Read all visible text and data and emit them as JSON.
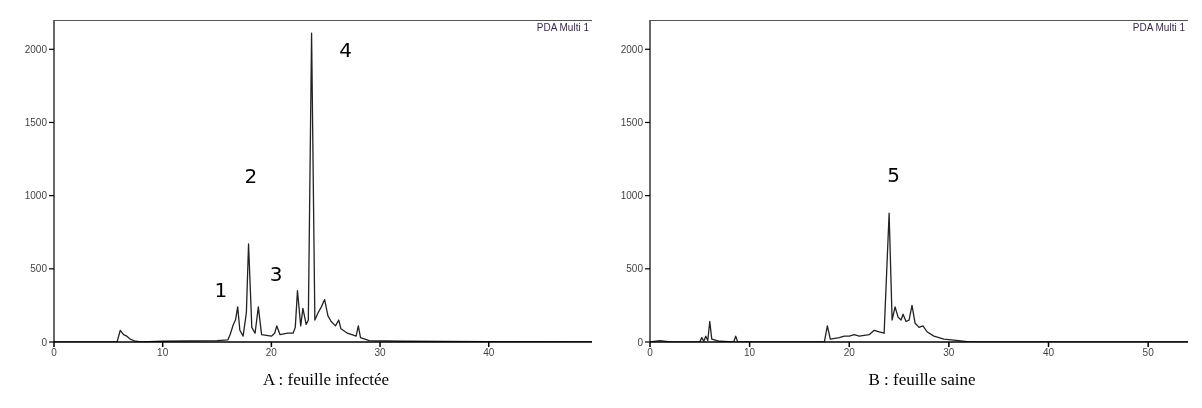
{
  "chart_data": [
    {
      "type": "line",
      "title": "A : feuille infectée",
      "annotations": [
        "PDA Multi 1",
        "1",
        "2",
        "3",
        "4"
      ],
      "xlim": [
        0,
        49.5
      ],
      "ylim": [
        0,
        2200
      ],
      "xticks": [
        0,
        10,
        20,
        30,
        40
      ],
      "yticks": [
        0,
        500,
        1000,
        1500,
        2000
      ],
      "grid": false,
      "legend": false,
      "marker": "none",
      "series": [
        {
          "color": "#222222",
          "x": [
            0,
            5.8,
            6.1,
            6.4,
            6.7,
            7,
            7.5,
            8,
            10,
            15,
            16,
            16.2,
            16.5,
            16.7,
            16.9,
            17.1,
            17.4,
            17.7,
            17.9,
            18.2,
            18.5,
            18.8,
            19.1,
            20,
            20.3,
            20.5,
            20.8,
            21.5,
            22,
            22.2,
            22.4,
            22.7,
            22.9,
            23.2,
            23.4,
            23.7,
            24,
            24.3,
            24.6,
            24.9,
            25.2,
            25.5,
            25.9,
            26.2,
            26.4,
            27,
            27.8,
            28,
            28.2,
            29,
            32,
            40,
            49.5
          ],
          "values": [
            0,
            0,
            80,
            50,
            40,
            20,
            5,
            0,
            5,
            10,
            15,
            50,
            120,
            150,
            240,
            80,
            40,
            200,
            670,
            100,
            60,
            240,
            50,
            40,
            60,
            110,
            50,
            60,
            60,
            100,
            350,
            110,
            230,
            120,
            150,
            2110,
            150,
            200,
            240,
            290,
            180,
            140,
            110,
            150,
            90,
            60,
            40,
            110,
            30,
            10,
            5,
            2,
            0
          ]
        }
      ]
    },
    {
      "type": "line",
      "title": "B : feuille saine",
      "annotations": [
        "PDA Multi 1",
        "5"
      ],
      "xlim": [
        0,
        54
      ],
      "ylim": [
        0,
        2200
      ],
      "xticks": [
        0,
        10,
        20,
        30,
        40,
        50
      ],
      "yticks": [
        0,
        500,
        1000,
        1500,
        2000
      ],
      "grid": false,
      "legend": false,
      "marker": "none",
      "series": [
        {
          "color": "#222222",
          "x": [
            0,
            1,
            2,
            5,
            5.2,
            5.4,
            5.6,
            5.8,
            6,
            6.2,
            7,
            8.4,
            8.6,
            8.8,
            17.5,
            17.8,
            18.1,
            19,
            19.5,
            20,
            20.5,
            21,
            22,
            22.5,
            23,
            23.5,
            24,
            24.3,
            24.6,
            24.9,
            25.2,
            25.4,
            25.7,
            26,
            26.3,
            26.6,
            27,
            27.4,
            27.8,
            28.5,
            29.5,
            31,
            32,
            54
          ],
          "values": [
            0,
            10,
            0,
            0,
            30,
            5,
            40,
            10,
            140,
            20,
            5,
            0,
            40,
            0,
            0,
            110,
            20,
            30,
            40,
            40,
            50,
            40,
            50,
            80,
            70,
            60,
            880,
            150,
            240,
            170,
            150,
            190,
            140,
            150,
            250,
            130,
            100,
            110,
            70,
            40,
            20,
            10,
            0,
            0
          ]
        }
      ]
    }
  ]
}
